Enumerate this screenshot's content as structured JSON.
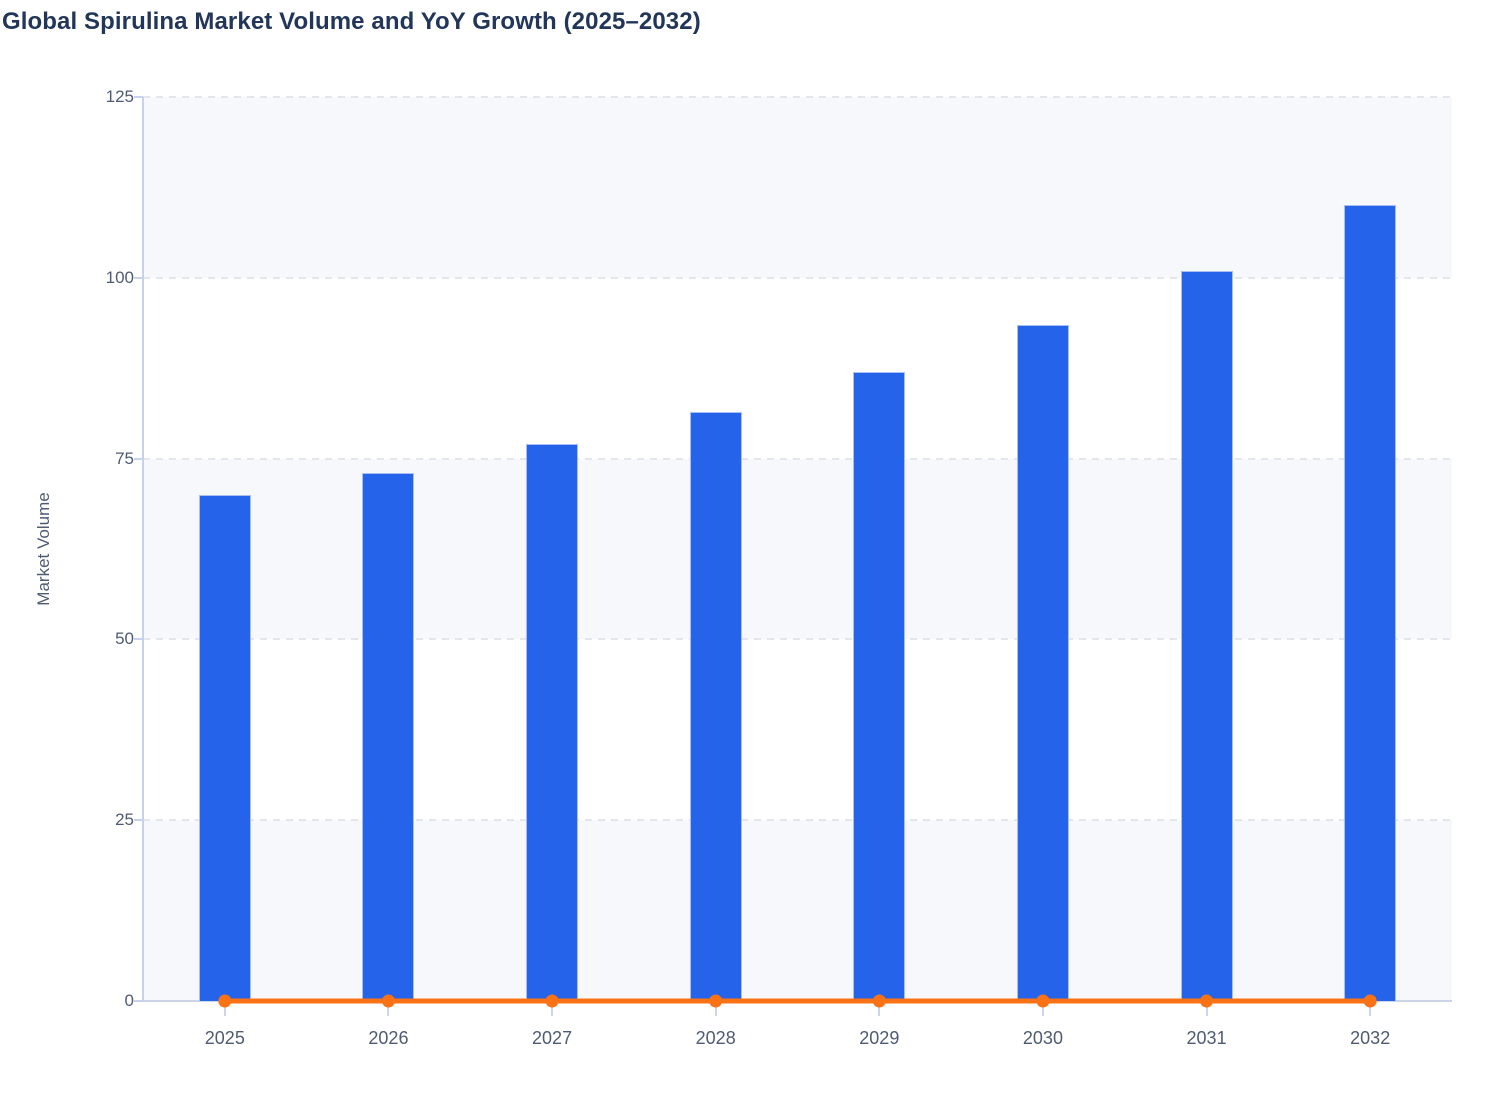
{
  "title": "Global Spirulina Market Volume and YoY Growth (2025–2032)",
  "chart_data": {
    "type": "bar",
    "title": "Global Spirulina Market Volume and YoY Growth (2025–2032)",
    "categories": [
      "2025",
      "2026",
      "2027",
      "2028",
      "2029",
      "2030",
      "2031",
      "2032"
    ],
    "series": [
      {
        "name": "Market Volume",
        "type": "bar",
        "color": "#2563eb",
        "values": [
          70,
          73,
          77,
          81.5,
          87,
          93.5,
          101,
          110
        ]
      },
      {
        "name": "YoY Growth",
        "type": "line",
        "color": "#f97316",
        "marker": "circle",
        "values": [
          0,
          0,
          0,
          0,
          0,
          0,
          0,
          0
        ]
      }
    ],
    "xlabel": "",
    "ylabel": "Market Volume",
    "ylim": [
      0,
      125
    ],
    "yticks": [
      0,
      25,
      50,
      75,
      100,
      125
    ],
    "grid": "horizontal-dashed",
    "legend_position": "none",
    "plot_background": "alternating horizontal bands"
  },
  "colors": {
    "bar": "#2563eb",
    "bar_border": "#bac8f2",
    "line": "#f97316",
    "title_text": "#22365a",
    "axis_text": "#4e5b73",
    "axis_line": "#c9d2ec",
    "gridline": "#e4e6ec",
    "band_light": "#f7f8fc",
    "band_white": "#ffffff",
    "background": "#ffffff"
  }
}
